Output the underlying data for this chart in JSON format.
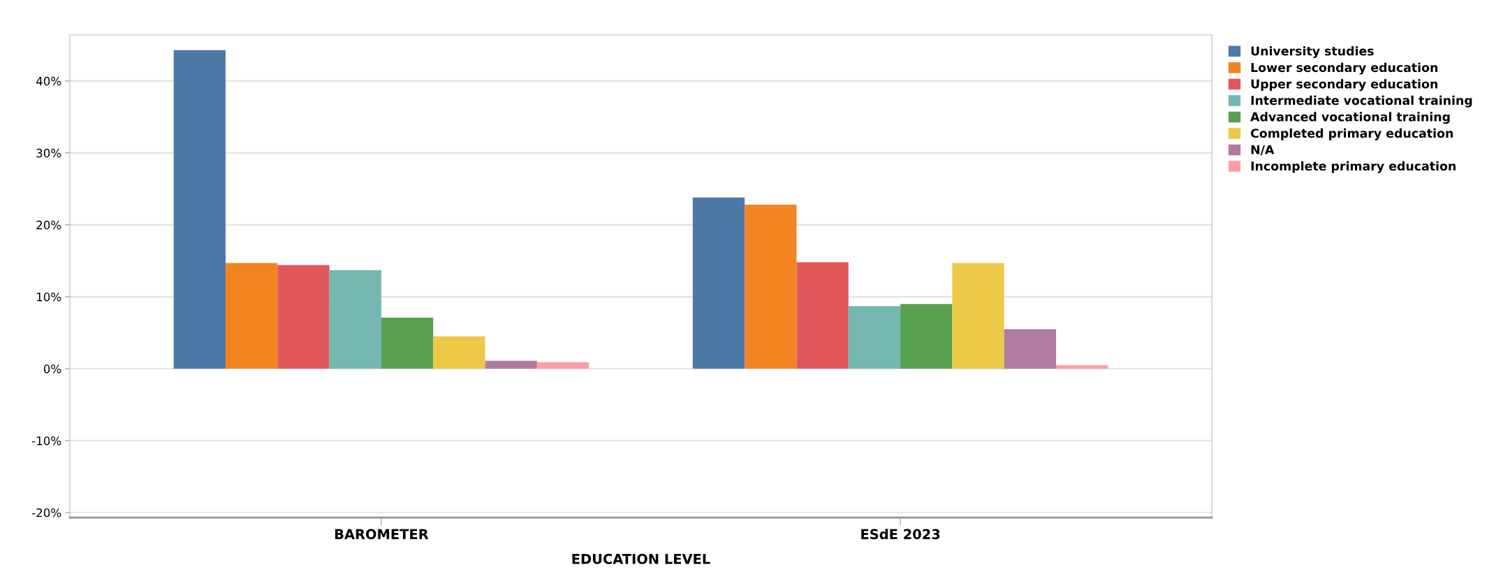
{
  "chart_data": {
    "type": "bar",
    "xlabel": "EDUCATION LEVEL",
    "categories": [
      "BAROMETER",
      "ESdE 2023"
    ],
    "series": [
      {
        "name": "University studies",
        "color": "#4e79a7",
        "values": [
          44.3,
          23.8
        ]
      },
      {
        "name": "Lower secondary education",
        "color": "#f28522",
        "values": [
          14.7,
          22.8
        ]
      },
      {
        "name": "Upper secondary education",
        "color": "#e15759",
        "values": [
          14.4,
          14.8
        ]
      },
      {
        "name": "Intermediate vocational training",
        "color": "#76b7b2",
        "values": [
          13.7,
          8.7
        ]
      },
      {
        "name": "Advanced vocational training",
        "color": "#59a14f",
        "values": [
          7.1,
          9.0
        ]
      },
      {
        "name": "Completed primary education",
        "color": "#edc948",
        "values": [
          4.5,
          14.7
        ]
      },
      {
        "name": "N/A",
        "color": "#b07aa1",
        "values": [
          1.1,
          5.5
        ]
      },
      {
        "name": "Incomplete primary education",
        "color": "#ff9da7",
        "values": [
          0.9,
          0.5
        ]
      }
    ],
    "ylim": [
      -20.7,
      46.4
    ],
    "yticks": [
      {
        "value": -20,
        "label": "-20%"
      },
      {
        "value": -10,
        "label": "-10%"
      },
      {
        "value": 0,
        "label": "0%"
      },
      {
        "value": 10,
        "label": "10%"
      },
      {
        "value": 20,
        "label": "20%"
      },
      {
        "value": 30,
        "label": "30%"
      },
      {
        "value": 40,
        "label": "40%"
      }
    ],
    "grid": "y",
    "legend": "top right"
  }
}
